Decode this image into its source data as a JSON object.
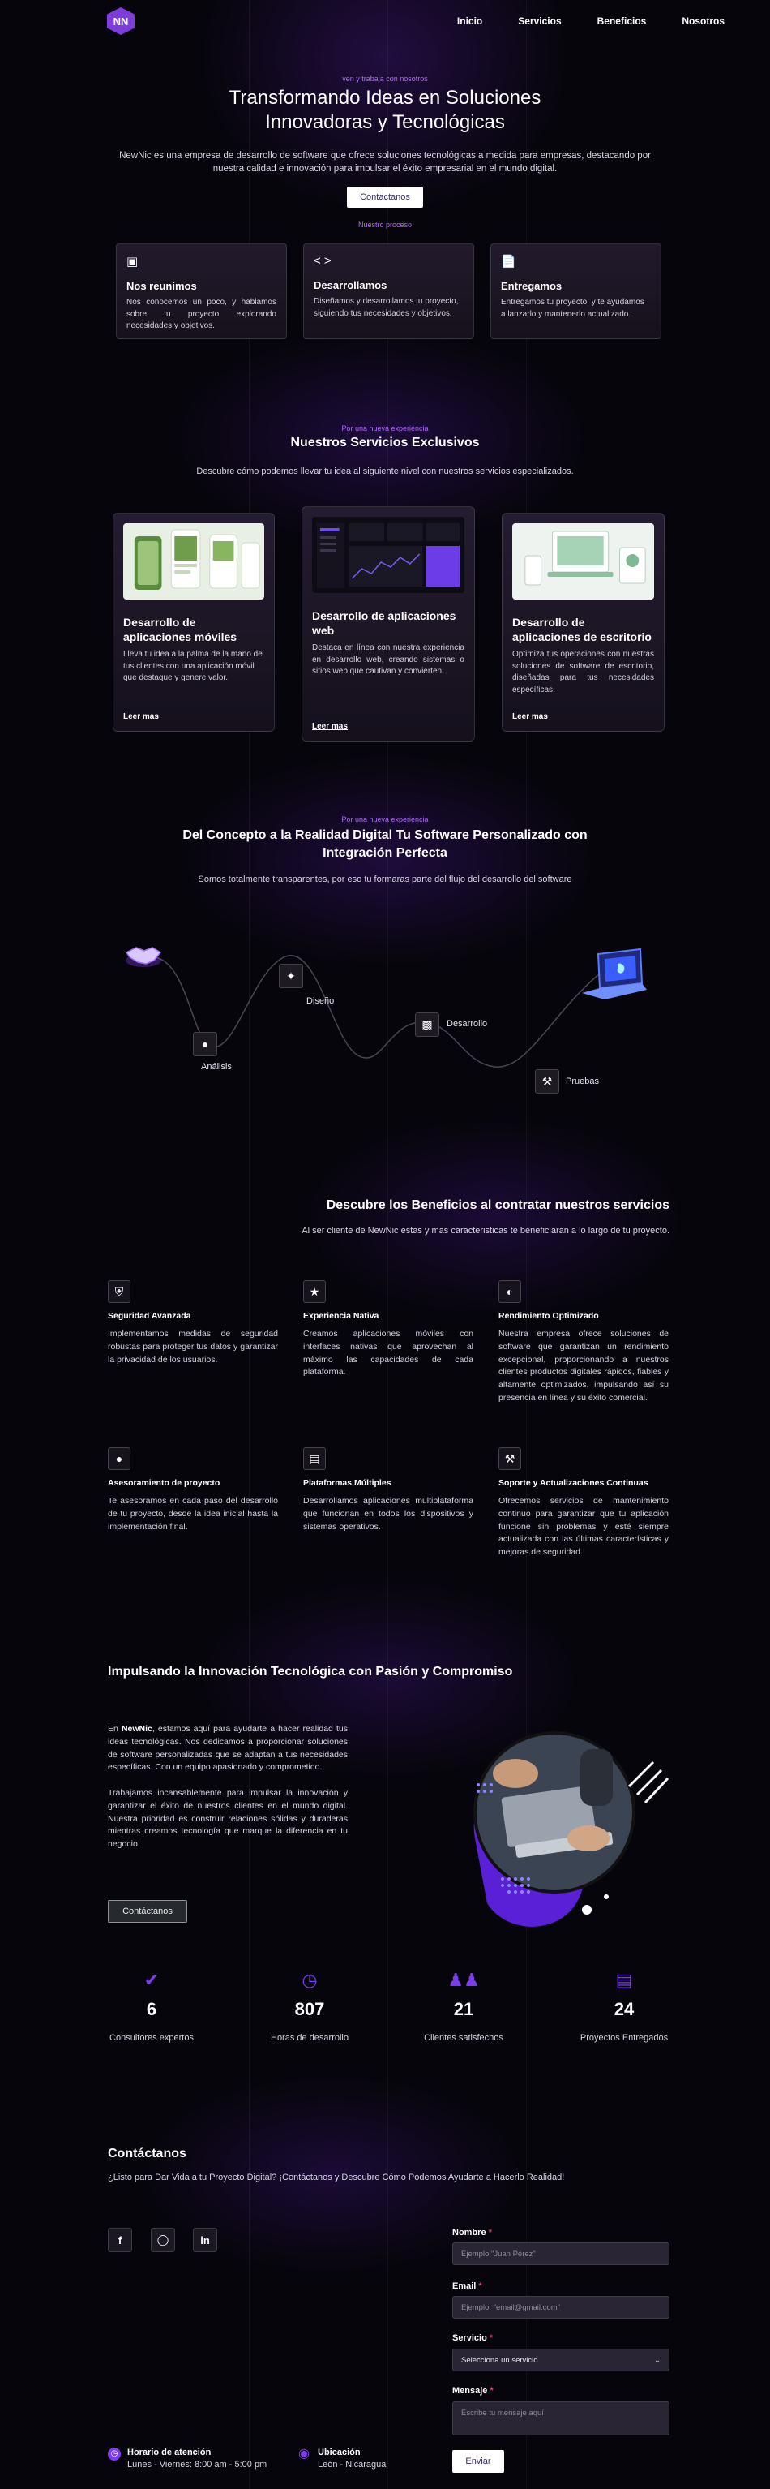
{
  "header": {
    "logo_text": "NN",
    "nav": [
      "Inicio",
      "Servicios",
      "Beneficios",
      "Nosotros"
    ]
  },
  "hero": {
    "kicker": "ven y trabaja con nosotros",
    "title_line1": "Transformando Ideas en Soluciones",
    "title_line2": "Innovadoras y Tecnológicas",
    "desc_line1": "NewNic es una empresa de desarrollo de software que ofrece soluciones tecnológicas a medida para empresas, destacando por",
    "desc_line2": "nuestra calidad e innovación para impulsar el éxito empresarial en el mundo digital.",
    "cta": "Contactanos",
    "process_kicker": "Nuestro proceso",
    "cards": [
      {
        "icon": "video-icon",
        "title": "Nos reunimos",
        "text": "Nos conocemos un poco, y hablamos sobre tu proyecto explorando necesidades y objetivos."
      },
      {
        "icon": "code-icon",
        "title": "Desarrollamos",
        "text": "Diseñamos y desarrollamos tu proyecto, siguiendo tus necesidades y objetivos."
      },
      {
        "icon": "file-icon",
        "title": "Entregamos",
        "text": "Entregamos tu proyecto, y te ayudamos a lanzarlo y mantenerlo actualizado."
      }
    ]
  },
  "services": {
    "kicker": "Por una nueva experiencia",
    "title": "Nuestros Servicios Exclusivos",
    "subtitle": "Descubre cómo podemos llevar tu idea al siguiente nivel con nuestros servicios especializados.",
    "read_more": "Leer mas",
    "cards": [
      {
        "title": "Desarrollo de aplicaciones móviles",
        "text": "Lleva tu idea a la palma de la mano de tus clientes con una aplicación móvil que destaque y genere valor."
      },
      {
        "title": "Desarrollo de aplicaciones web",
        "text": "Destaca en línea con nuestra experiencia en desarrollo web, creando sistemas o sitios web que cautivan y convierten."
      },
      {
        "title": "Desarrollo de aplicaciones de escritorio",
        "text": "Optimiza tus operaciones con nuestras soluciones de software de escritorio, diseñadas para tus necesidades específicas."
      }
    ]
  },
  "process": {
    "kicker": "Por una nueva experiencia",
    "title_line1": "Del Concepto a la Realidad Digital Tu Software Personalizado con",
    "title_line2": "Integración Perfecta",
    "subtitle": "Somos totalmente transparentes, por eso tu formaras parte del flujo del desarrollo del software",
    "steps": [
      "Análisis",
      "Diseño",
      "Desarrollo",
      "Pruebas"
    ]
  },
  "benefits": {
    "title": "Descubre los Beneficios al contratar nuestros servicios",
    "subtitle": "Al ser cliente de NewNic estas y mas caracteristicas te beneficiaran a lo largo de tu proyecto.",
    "items": [
      {
        "icon": "shield-icon",
        "title": "Seguridad Avanzada",
        "text": "Implementamos medidas de seguridad robustas para proteger tus datos y garantizar la privacidad de los usuarios."
      },
      {
        "icon": "star-icon",
        "title": "Experiencia Nativa",
        "text": "Creamos aplicaciones móviles con interfaces nativas que aprovechan al máximo las capacidades de cada plataforma."
      },
      {
        "icon": "gauge-icon",
        "title": "Rendimiento Optimizado",
        "text": "Nuestra empresa ofrece soluciones de software que garantizan un rendimiento excepcional, proporcionando a nuestros clientes productos digitales rápidos, fiables y altamente optimizados, impulsando así su presencia en línea y su éxito comercial."
      },
      {
        "icon": "lightbulb-icon",
        "title": "Asesoramiento de proyecto",
        "text": "Te asesoramos en cada paso del desarrollo de tu proyecto, desde la idea inicial hasta la implementación final."
      },
      {
        "icon": "chart-icon",
        "title": "Plataformas Múltiples",
        "text": "Desarrollamos aplicaciones multiplataforma que funcionan en todos los dispositivos y sistemas operativos."
      },
      {
        "icon": "tools-icon",
        "title": "Soporte y Actualizaciones Continuas",
        "text": "Ofrecemos servicios de mantenimiento continuo para garantizar que tu aplicación funcione sin problemas y esté siempre actualizada con las últimas características y mejoras de seguridad."
      }
    ]
  },
  "about": {
    "title": "Impulsando la Innovación Tecnológica con Pasión y Compromiso",
    "p1_prefix": "En ",
    "p1_brand": "NewNic",
    "p1_rest": ", estamos aquí para ayudarte a hacer realidad tus ideas tecnológicas. Nos dedicamos a proporcionar soluciones de software personalizadas que se adaptan a tus necesidades específicas. Con un equipo apasionado y comprometido.",
    "p2": "Trabajamos incansablemente para impulsar la innovación y garantizar el éxito de nuestros clientes en el mundo digital. Nuestra prioridad es construir relaciones sólidas y duraderas mientras creamos tecnología que marque la diferencia en tu negocio.",
    "cta": "Contáctanos"
  },
  "stats": [
    {
      "icon": "check-badge-icon",
      "value": "6",
      "label": "Consultores expertos"
    },
    {
      "icon": "clock-icon",
      "value": "807",
      "label": "Horas de desarrollo"
    },
    {
      "icon": "users-icon",
      "value": "21",
      "label": "Clientes satisfechos"
    },
    {
      "icon": "document-icon",
      "value": "24",
      "label": "Proyectos Entregados"
    }
  ],
  "contact": {
    "title": "Contáctanos",
    "subtitle": "¿Listo para Dar Vida a tu Proyecto Digital? ¡Contáctanos y Descubre Cómo Podemos Ayudarte a Hacerlo Realidad!",
    "social": [
      "facebook-icon",
      "instagram-icon",
      "linkedin-icon"
    ],
    "hours_title": "Horario de atención",
    "hours_value": "Lunes - Viernes: 8:00 am - 5:00 pm",
    "location_title": "Ubicación",
    "location_value": "León - Nicaragua",
    "form": {
      "name_label": "Nombre",
      "name_placeholder": "Ejemplo \"Juan Pérez\"",
      "email_label": "Email",
      "email_placeholder": "Ejemplo: \"email@gmail.com\"",
      "service_label": "Servicio",
      "service_value": "Selecciona un servicio",
      "message_label": "Mensaje",
      "message_placeholder": "Escribe tu mensaje aquí",
      "submit": "Enviar"
    }
  },
  "colors": {
    "accent": "#7b3cf2",
    "background": "#07050c",
    "card": "#1d1725"
  }
}
